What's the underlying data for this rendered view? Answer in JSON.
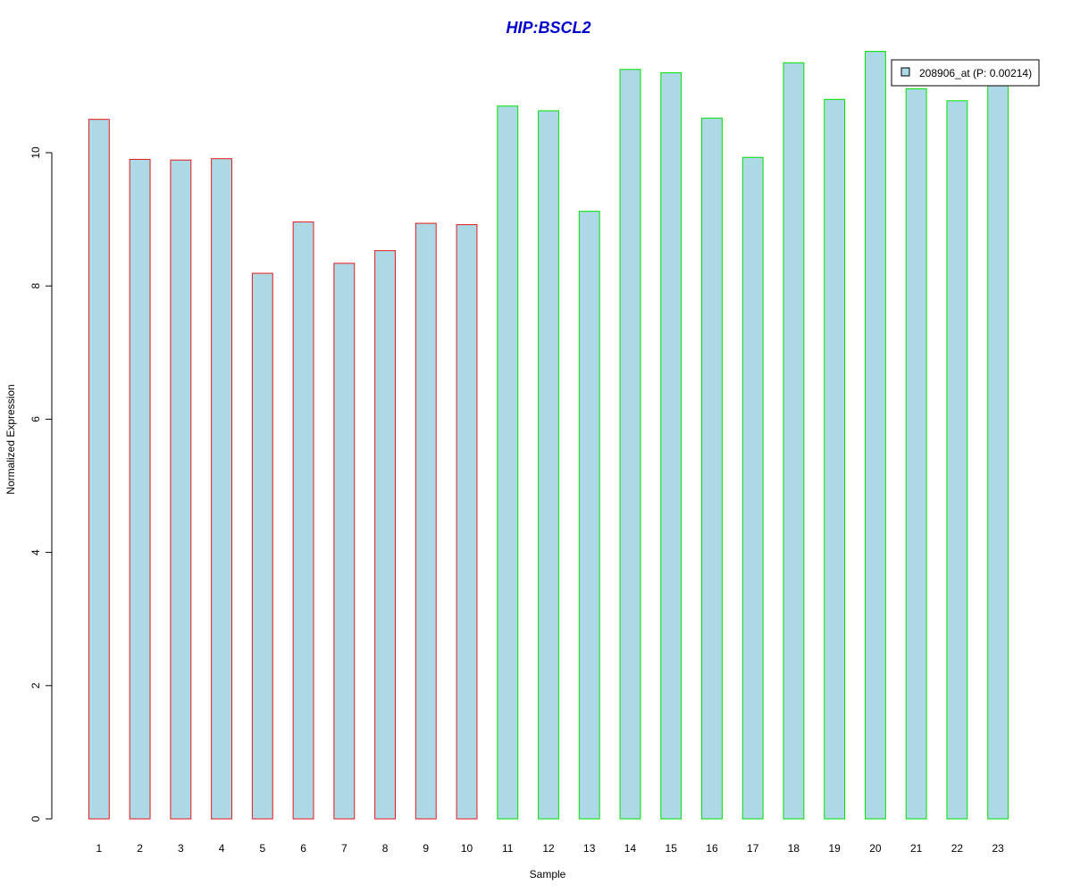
{
  "chart_data": {
    "type": "bar",
    "title": "HIP:BSCL2",
    "xlabel": "Sample",
    "ylabel": "Normalized Expression",
    "categories": [
      "1",
      "2",
      "3",
      "4",
      "5",
      "6",
      "7",
      "8",
      "9",
      "10",
      "11",
      "12",
      "13",
      "14",
      "15",
      "16",
      "17",
      "18",
      "19",
      "20",
      "21",
      "22",
      "23"
    ],
    "yticks": [
      0,
      2,
      4,
      6,
      8,
      10
    ],
    "ylim": [
      0,
      11.6
    ],
    "grid": false,
    "legend": {
      "position": "top-right",
      "entries": [
        "208906_at (P: 0.00214)"
      ]
    },
    "series": [
      {
        "name": "208906_at (P: 0.00214)",
        "values": [
          10.5,
          9.9,
          9.89,
          9.91,
          8.19,
          8.96,
          8.34,
          8.53,
          8.94,
          8.92,
          10.7,
          10.63,
          9.12,
          11.25,
          11.2,
          10.52,
          9.93,
          11.35,
          10.8,
          11.52,
          10.96,
          10.78,
          11.05
        ],
        "group_labels_hidden": true
      }
    ],
    "groups": [
      {
        "range": [
          1,
          10
        ],
        "border_color": "#e41a1c"
      },
      {
        "range": [
          11,
          23
        ],
        "border_color": "#00e000"
      }
    ],
    "colors": {
      "bar_fill": "#add8e6",
      "title": "#0000cd"
    }
  }
}
